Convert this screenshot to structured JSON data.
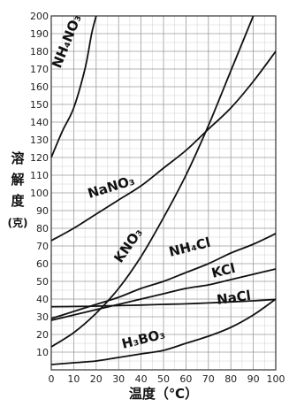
{
  "chart_data": {
    "type": "line",
    "title": "",
    "xlabel": "温度（℃）",
    "ylabel_chars": [
      "溶",
      "解",
      "度",
      "(克)"
    ],
    "xlim": [
      0,
      100
    ],
    "ylim": [
      0,
      200
    ],
    "x_ticks": [
      0,
      10,
      20,
      30,
      40,
      50,
      60,
      70,
      80,
      90,
      100
    ],
    "y_ticks": [
      10,
      20,
      30,
      40,
      50,
      60,
      70,
      80,
      90,
      100,
      110,
      120,
      130,
      140,
      150,
      160,
      170,
      180,
      190,
      200
    ],
    "grid": true,
    "series": [
      {
        "name": "NH₄NO₃",
        "label_at": [
          4,
          170
        ],
        "label_angle": -68,
        "points": [
          [
            0,
            120
          ],
          [
            5,
            135
          ],
          [
            10,
            148
          ],
          [
            15,
            170
          ],
          [
            18,
            190
          ],
          [
            20,
            200
          ]
        ]
      },
      {
        "name": "NaNO₃",
        "label_at": [
          17,
          97
        ],
        "label_angle": -17,
        "points": [
          [
            0,
            73
          ],
          [
            10,
            80
          ],
          [
            20,
            88
          ],
          [
            30,
            96
          ],
          [
            40,
            104
          ],
          [
            50,
            114
          ],
          [
            60,
            124
          ],
          [
            70,
            136
          ],
          [
            80,
            148
          ],
          [
            90,
            163
          ],
          [
            100,
            180
          ]
        ]
      },
      {
        "name": "KNO₃",
        "label_at": [
          31,
          60
        ],
        "label_angle": -55,
        "points": [
          [
            0,
            13
          ],
          [
            10,
            21
          ],
          [
            20,
            32
          ],
          [
            30,
            46
          ],
          [
            40,
            64
          ],
          [
            50,
            86
          ],
          [
            60,
            110
          ],
          [
            70,
            138
          ],
          [
            80,
            169
          ],
          [
            90,
            200
          ]
        ]
      },
      {
        "name": "NH₄Cl",
        "label_at": [
          53,
          64
        ],
        "label_angle": -14,
        "points": [
          [
            0,
            29
          ],
          [
            10,
            33
          ],
          [
            20,
            37
          ],
          [
            30,
            41
          ],
          [
            40,
            46
          ],
          [
            50,
            50
          ],
          [
            60,
            55
          ],
          [
            70,
            60
          ],
          [
            80,
            66
          ],
          [
            90,
            71
          ],
          [
            100,
            77
          ]
        ]
      },
      {
        "name": "KCl",
        "label_at": [
          72,
          52
        ],
        "label_angle": -14,
        "points": [
          [
            0,
            28
          ],
          [
            10,
            31
          ],
          [
            20,
            34
          ],
          [
            30,
            37
          ],
          [
            40,
            40
          ],
          [
            50,
            43
          ],
          [
            60,
            46
          ],
          [
            70,
            48
          ],
          [
            80,
            51
          ],
          [
            90,
            54
          ],
          [
            100,
            57
          ]
        ]
      },
      {
        "name": "NaCl",
        "label_at": [
          74,
          37
        ],
        "label_angle": -8,
        "points": [
          [
            0,
            35.7
          ],
          [
            10,
            35.8
          ],
          [
            20,
            36
          ],
          [
            30,
            36.3
          ],
          [
            40,
            36.6
          ],
          [
            50,
            37
          ],
          [
            60,
            37.3
          ],
          [
            70,
            37.8
          ],
          [
            80,
            38.4
          ],
          [
            90,
            39
          ],
          [
            100,
            39.8
          ]
        ]
      },
      {
        "name": "H₃BO₃",
        "label_at": [
          32,
          12
        ],
        "label_angle": -14,
        "points": [
          [
            0,
            3
          ],
          [
            10,
            4
          ],
          [
            20,
            5
          ],
          [
            30,
            7
          ],
          [
            40,
            9
          ],
          [
            50,
            11
          ],
          [
            60,
            15
          ],
          [
            70,
            19
          ],
          [
            80,
            24
          ],
          [
            90,
            31
          ],
          [
            100,
            40
          ]
        ]
      }
    ]
  }
}
